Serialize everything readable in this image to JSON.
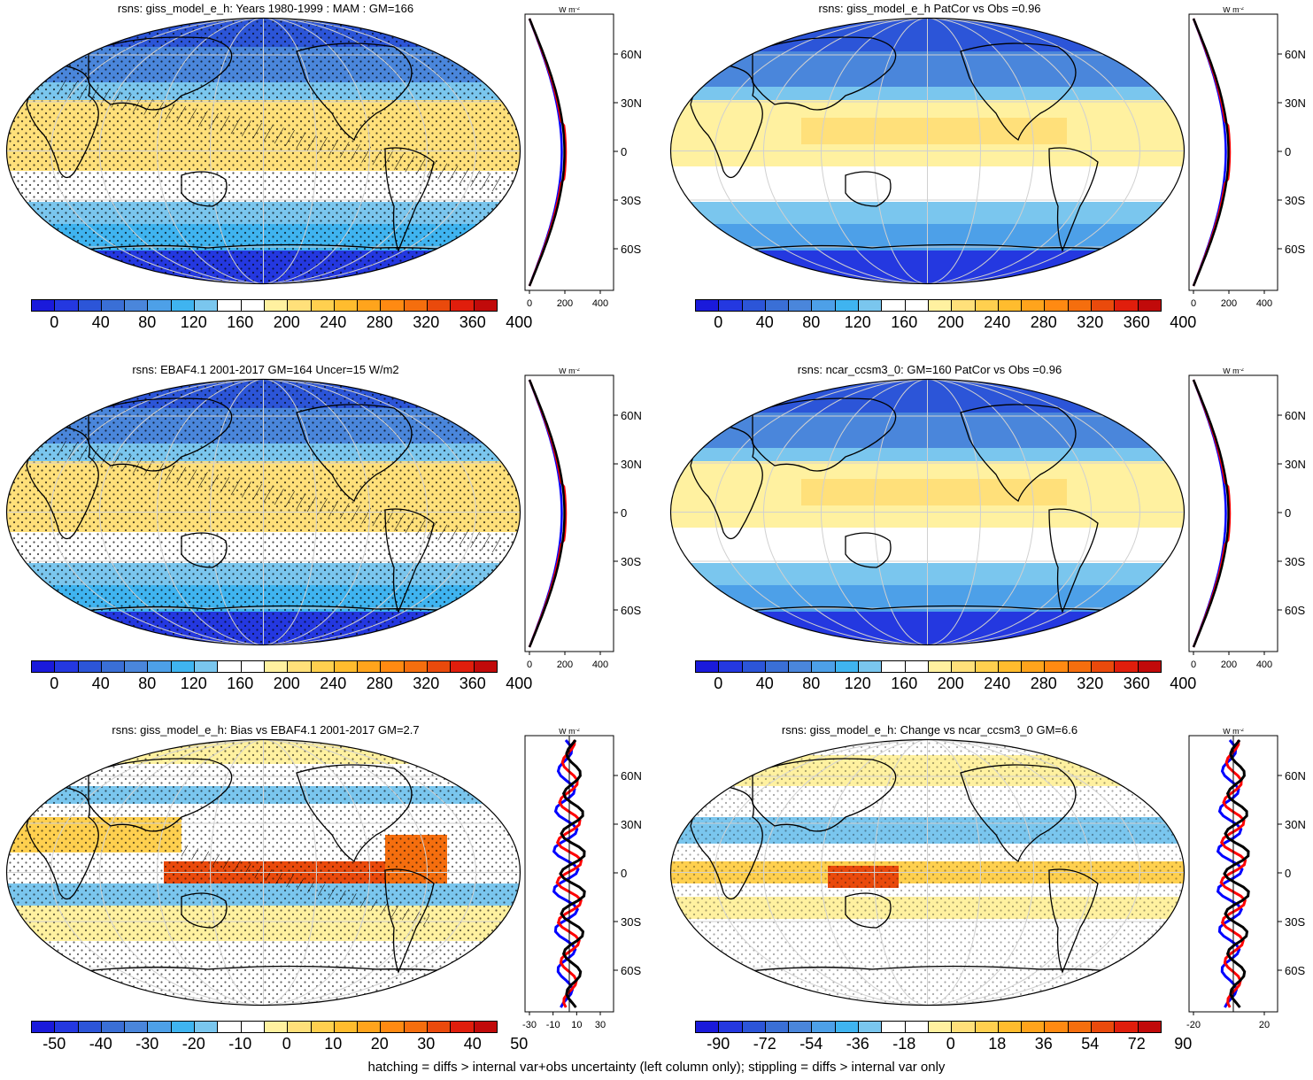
{
  "panels": [
    {
      "id": "p1",
      "title": "rsns: giss_model_e_h: Years 1980-1999 : MAM : GM=166",
      "scale": "abs",
      "profile_xticks": [
        "0",
        "200",
        "400"
      ]
    },
    {
      "id": "p2",
      "title": "rsns: giss_model_e_h PatCor vs Obs =0.96",
      "scale": "abs",
      "profile_xticks": [
        "0",
        "200",
        "400"
      ]
    },
    {
      "id": "p3",
      "title": "rsns: EBAF4.1 2001-2017 GM=164 Uncer=15 W/m2",
      "scale": "abs",
      "profile_xticks": [
        "0",
        "200",
        "400"
      ]
    },
    {
      "id": "p4",
      "title": "rsns: ncar_ccsm3_0: GM=160 PatCor vs Obs =0.96",
      "scale": "abs",
      "profile_xticks": [
        "0",
        "200",
        "400"
      ]
    },
    {
      "id": "p5",
      "title": "rsns: giss_model_e_h: Bias vs EBAF4.1 2001-2017 GM=2.7",
      "scale": "bias",
      "profile_xticks": [
        "-30",
        "-10",
        "10",
        "30"
      ]
    },
    {
      "id": "p6",
      "title": "rsns: giss_model_e_h: Change vs ncar_ccsm3_0 GM=6.6",
      "scale": "change",
      "profile_xticks": [
        "-20",
        "20"
      ]
    }
  ],
  "profile_unit": "W m",
  "profile_unit_exp": "-2",
  "lat_labels": [
    "60N",
    "30N",
    "0",
    "30S",
    "60S"
  ],
  "colorbars": {
    "abs": {
      "labels": [
        "0",
        "40",
        "80",
        "120",
        "160",
        "200",
        "240",
        "280",
        "320",
        "360",
        "400"
      ]
    },
    "bias": {
      "labels": [
        "-50",
        "-40",
        "-30",
        "-20",
        "-10",
        "0",
        "10",
        "20",
        "30",
        "40",
        "50"
      ]
    },
    "change": {
      "labels": [
        "-90",
        "-72",
        "-54",
        "-36",
        "-18",
        "0",
        "18",
        "36",
        "54",
        "72",
        "90"
      ]
    }
  },
  "colors": {
    "palette": [
      "#1a1adb",
      "#2438e0",
      "#2c55d8",
      "#3a6fd6",
      "#4a86db",
      "#4da0e8",
      "#3fb4f0",
      "#7ac6ee",
      "#ffffff",
      "#ffffff",
      "#fff1a0",
      "#ffe07a",
      "#ffd04f",
      "#ffbc2e",
      "#ffa41c",
      "#ff8a12",
      "#f56e0e",
      "#ea4a0c",
      "#e01e0c",
      "#c10a0a"
    ],
    "model_line": "#ff0000",
    "obs_line": "#0000ff",
    "mean_line": "#000000"
  },
  "footer": "hatching = diffs > internal var+obs uncertainty (left column only); stippling = diffs > internal var only"
}
